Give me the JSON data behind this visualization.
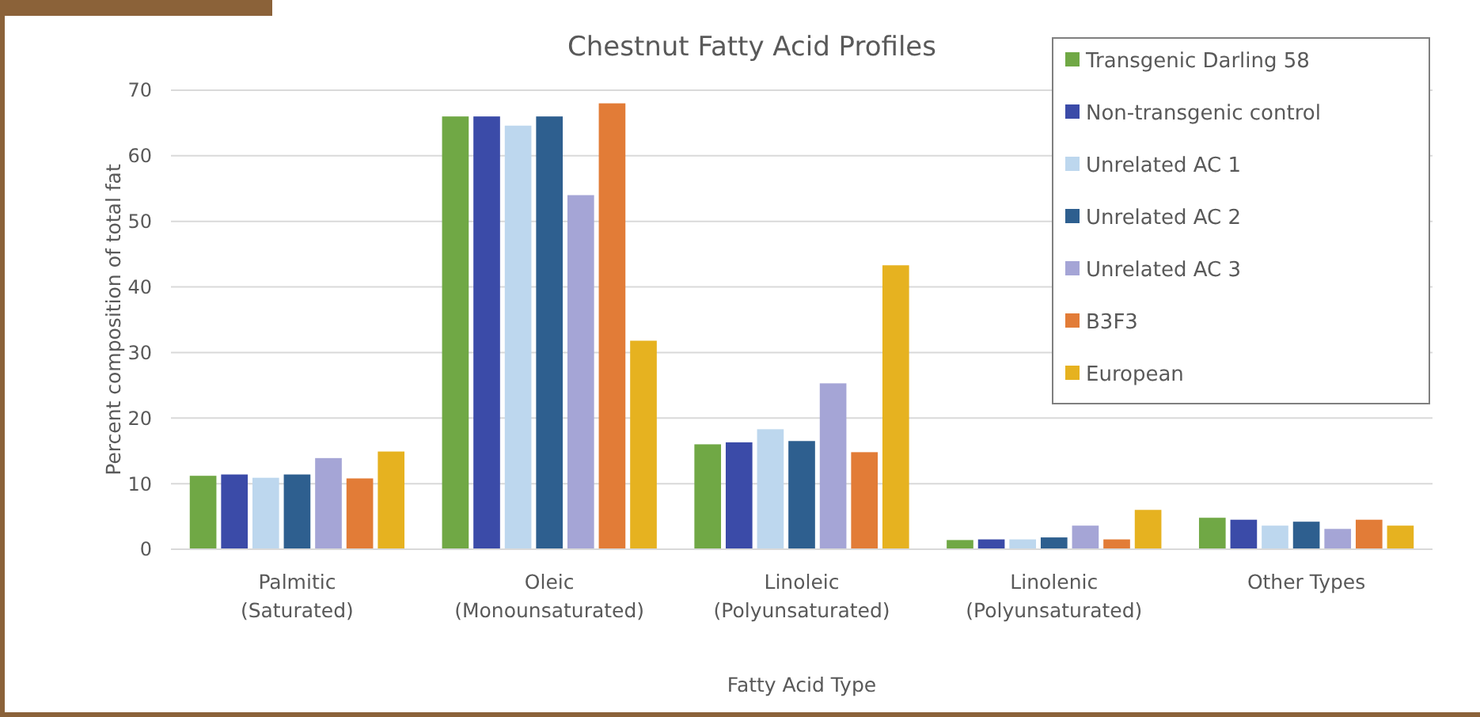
{
  "chart_data": {
    "type": "bar",
    "title": "Chestnut Fatty Acid Profiles",
    "xlabel": "Fatty Acid Type",
    "ylabel": "Percent composition of total fat",
    "categories": [
      "Palmitic\n(Saturated)",
      "Oleic\n(Monounsaturated)",
      "Linoleic\n(Polyunsaturated)",
      "Linolenic\n(Polyunsaturated)",
      "Other Types"
    ],
    "series": [
      {
        "name": "Transgenic Darling 58",
        "color": "#70a845",
        "values": [
          11.2,
          66,
          16,
          1.4,
          4.8
        ]
      },
      {
        "name": "Non-transgenic control",
        "color": "#3b4ba8",
        "values": [
          11.4,
          66,
          16.3,
          1.5,
          4.5
        ]
      },
      {
        "name": "Unrelated AC 1",
        "color": "#bdd7ee",
        "values": [
          10.9,
          64.6,
          18.3,
          1.5,
          3.6
        ]
      },
      {
        "name": "Unrelated AC 2",
        "color": "#2e5f8f",
        "values": [
          11.4,
          66,
          16.5,
          1.8,
          4.2
        ]
      },
      {
        "name": "Unrelated AC 3",
        "color": "#a5a5d6",
        "values": [
          13.9,
          54,
          25.3,
          3.6,
          3.1
        ]
      },
      {
        "name": "B3F3",
        "color": "#e27c37",
        "values": [
          10.8,
          68,
          14.8,
          1.5,
          4.5
        ]
      },
      {
        "name": "European",
        "color": "#e6b220",
        "values": [
          14.9,
          31.8,
          43.3,
          6,
          3.6
        ]
      }
    ],
    "ylim": [
      0,
      70
    ],
    "yticks": [
      0,
      10,
      20,
      30,
      40,
      50,
      60,
      70
    ],
    "grid": "y",
    "legend": "top right"
  }
}
